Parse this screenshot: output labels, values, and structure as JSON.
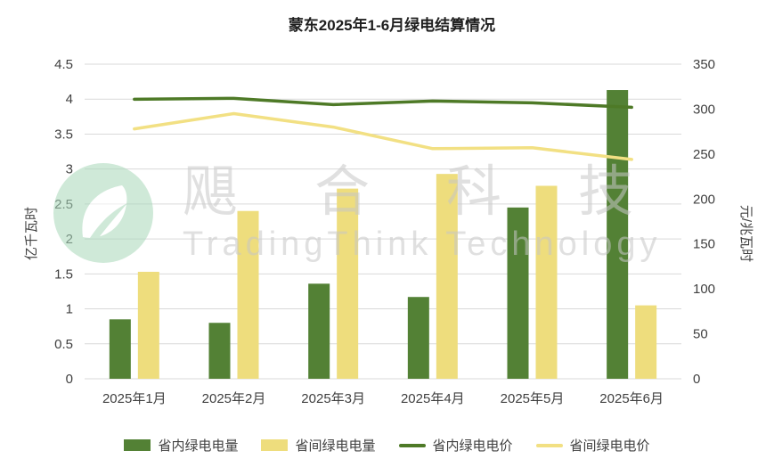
{
  "chart_data": {
    "type": "combo",
    "title": "蒙东2025年1-6月绿电结算情况",
    "categories": [
      "2025年1月",
      "2025年2月",
      "2025年3月",
      "2025年4月",
      "2025年5月",
      "2025年6月"
    ],
    "bar_series": [
      {
        "name": "省内绿电电量",
        "axis": "left",
        "color": "#538135",
        "values": [
          0.85,
          0.8,
          1.36,
          1.17,
          2.45,
          4.13
        ]
      },
      {
        "name": "省间绿电电量",
        "axis": "left",
        "color": "#eedd7d",
        "values": [
          1.53,
          2.4,
          2.72,
          2.93,
          2.76,
          1.05
        ]
      }
    ],
    "line_series": [
      {
        "name": "省内绿电电价",
        "axis": "right",
        "color": "#4e7a27",
        "values": [
          311,
          312,
          305,
          309,
          307,
          302
        ]
      },
      {
        "name": "省间绿电电价",
        "axis": "right",
        "color": "#f2e083",
        "values": [
          278,
          295,
          280,
          256,
          257,
          244
        ]
      }
    ],
    "ylabel_left": "亿千瓦时",
    "ylabel_right": "元/兆瓦时",
    "yaxis_left": {
      "min": 0,
      "max": 4.5,
      "step": 0.5
    },
    "yaxis_right": {
      "min": 0,
      "max": 350,
      "step": 50
    },
    "grid": true,
    "legend_position": "bottom"
  },
  "watermark": {
    "cn": "飓合科技",
    "en": "TradingThink Technology"
  },
  "colors": {
    "gridline": "#d9d9d9",
    "axis_text": "#404040",
    "watermark_gray": "#c7c7c7",
    "logo_green": "#a8d8ba"
  }
}
